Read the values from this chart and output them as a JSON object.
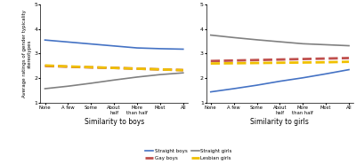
{
  "x_labels": [
    "None",
    "A few",
    "Some",
    "About\nhalf",
    "More\nthan half",
    "Most",
    "All"
  ],
  "x_vals": [
    0,
    1,
    2,
    3,
    4,
    5,
    6
  ],
  "subplot1_title": "Similarity to boys",
  "subplot2_title": "Similarity to girls",
  "ylabel": "Average ratings of gender typicality stereotypes",
  "ylim": [
    1,
    5
  ],
  "yticks": [
    1,
    2,
    3,
    4,
    5
  ],
  "series": {
    "straight_boys": {
      "label": "Straight boys",
      "color": "#4472C4",
      "linestyle": "solid",
      "linewidth": 1.2,
      "sub1": [
        3.55,
        3.47,
        3.39,
        3.31,
        3.23,
        3.2,
        3.18
      ],
      "sub2": [
        1.45,
        1.58,
        1.72,
        1.88,
        2.02,
        2.18,
        2.35
      ]
    },
    "gay_boys": {
      "label": "Gay boys",
      "color": "#C0504D",
      "linestyle": "dashed",
      "linewidth": 2.0,
      "sub1": [
        2.5,
        2.47,
        2.44,
        2.42,
        2.39,
        2.36,
        2.33
      ],
      "sub2": [
        2.7,
        2.72,
        2.74,
        2.76,
        2.78,
        2.8,
        2.82
      ]
    },
    "straight_girls": {
      "label": "Straight girls",
      "color": "#808080",
      "linestyle": "solid",
      "linewidth": 1.2,
      "sub1": [
        1.58,
        1.68,
        1.8,
        1.93,
        2.05,
        2.15,
        2.22
      ],
      "sub2": [
        3.75,
        3.65,
        3.56,
        3.48,
        3.4,
        3.36,
        3.32
      ]
    },
    "lesbian_girls": {
      "label": "Lesbian girls",
      "color": "#F0C000",
      "linestyle": "dashed",
      "linewidth": 2.0,
      "sub1": [
        2.52,
        2.48,
        2.45,
        2.42,
        2.39,
        2.36,
        2.33
      ],
      "sub2": [
        2.6,
        2.61,
        2.62,
        2.63,
        2.64,
        2.65,
        2.67
      ]
    }
  },
  "legend_order": [
    "straight_boys",
    "gay_boys",
    "straight_girls",
    "lesbian_girls"
  ],
  "background_color": "#ffffff"
}
